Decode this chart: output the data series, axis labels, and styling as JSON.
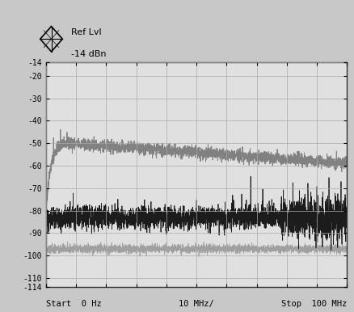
{
  "ylabel": "dBn",
  "xlabel_start": "Start  0 Hz",
  "xlabel_mid": "10 MHz/",
  "xlabel_stop": "Stop  100 MHz",
  "ylim": [
    -114,
    -14
  ],
  "xlim": [
    0,
    100
  ],
  "yticks": [
    -14,
    -20,
    -30,
    -40,
    -50,
    -60,
    -70,
    -80,
    -90,
    -100,
    -110,
    -114
  ],
  "ytick_labels": [
    "-14",
    "-20",
    "-30",
    "-40",
    "-50",
    "-60",
    "-70",
    "-80",
    "-90",
    "-100",
    "-110",
    "-114"
  ],
  "xtick_positions": [
    0,
    10,
    20,
    30,
    40,
    50,
    60,
    70,
    80,
    90,
    100
  ],
  "grid_color": "#aaaaaa",
  "background_color": "#e0e0e0",
  "border_color": "#333333",
  "trace1_color": "#777777",
  "trace2_color": "#111111",
  "trace3_color": "#999999",
  "fig_bg": "#c8c8c8",
  "ref_lvl_line1": "Ref Lvl",
  "ref_lvl_line2": "-14 dBn",
  "seed": 42
}
